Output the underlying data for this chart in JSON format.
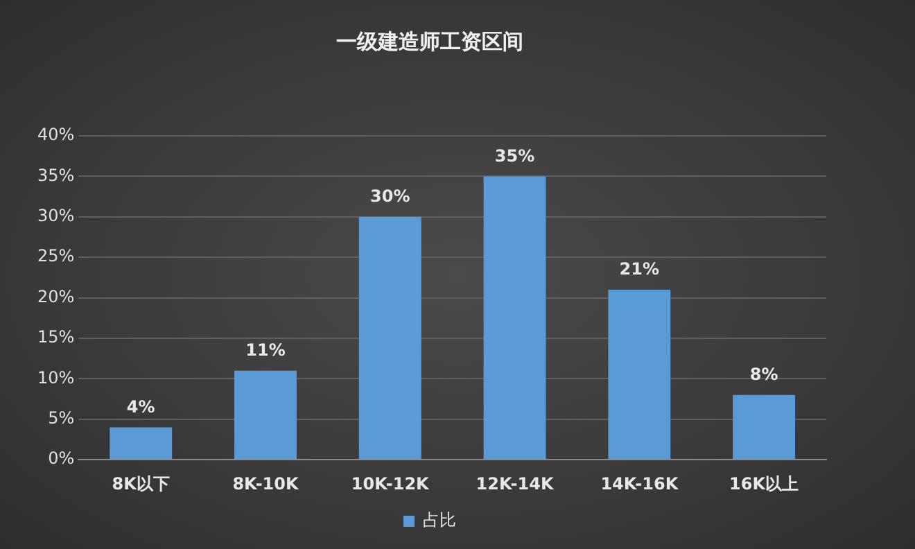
{
  "chart_data": {
    "type": "bar",
    "title": "一级建造师工资区间",
    "categories": [
      "8K以下",
      "8K-10K",
      "10K-12K",
      "12K-14K",
      "14K-16K",
      "16K以上"
    ],
    "series": [
      {
        "name": "占比",
        "color": "#5b9bd5",
        "values": [
          4,
          11,
          30,
          35,
          21,
          8
        ],
        "value_labels": [
          "4%",
          "11%",
          "30%",
          "35%",
          "21%",
          "8%"
        ]
      }
    ],
    "ylim": [
      0,
      40
    ],
    "yticks": [
      {
        "value": 0,
        "label": "0%"
      },
      {
        "value": 5,
        "label": "5%"
      },
      {
        "value": 10,
        "label": "10%"
      },
      {
        "value": 15,
        "label": "15%"
      },
      {
        "value": 20,
        "label": "20%"
      },
      {
        "value": 25,
        "label": "25%"
      },
      {
        "value": 30,
        "label": "30%"
      },
      {
        "value": 35,
        "label": "35%"
      },
      {
        "value": 40,
        "label": "40%"
      }
    ],
    "grid": "y",
    "legend": "bottom"
  }
}
